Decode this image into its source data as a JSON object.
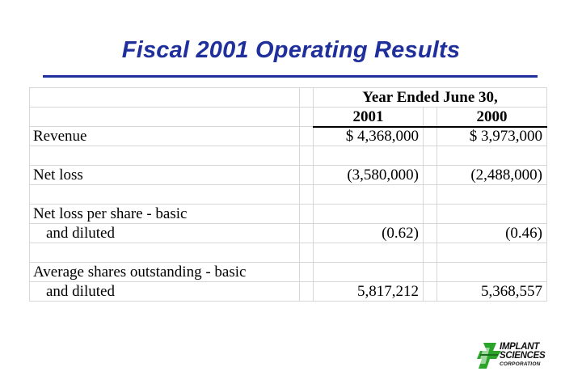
{
  "title": "Fiscal 2001 Operating Results",
  "table": {
    "header_group": "Year Ended June 30,",
    "year_1": "2001",
    "year_2": "2000",
    "rows": [
      {
        "label": "Revenue",
        "v2001": "$ 4,368,000",
        "v2000": "$ 3,973,000"
      },
      {
        "label": "Net loss",
        "v2001": "(3,580,000)",
        "v2000": "(2,488,000)"
      },
      {
        "label": "Net loss per share - basic",
        "label2": "and diluted",
        "v2001": "(0.62)",
        "v2000": "(0.46)"
      },
      {
        "label": "Average shares outstanding - basic",
        "label2": "and diluted",
        "v2001": "5,817,212",
        "v2000": "5,368,557"
      }
    ]
  },
  "logo": {
    "line1": "IMPLANT",
    "line2": "SCIENCES",
    "line3": "CORPORATION",
    "accent_color": "#2aa52a"
  }
}
